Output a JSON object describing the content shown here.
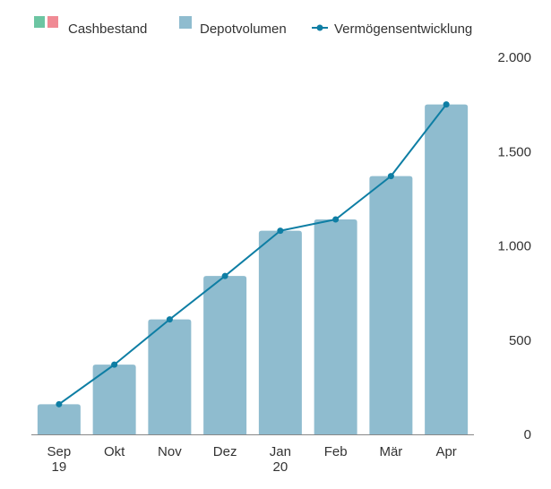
{
  "legend": {
    "items": [
      {
        "label": "Cashbestand",
        "icon": "dual-swatch-icon",
        "colors": [
          "#6cc5a2",
          "#f08a94"
        ]
      },
      {
        "label": "Depotvolumen",
        "icon": "square-swatch-icon",
        "colors": [
          "#8fbccf"
        ]
      },
      {
        "label": "Vermögensentwicklung",
        "icon": "line-marker-icon",
        "colors": [
          "#0e7ea4"
        ]
      }
    ]
  },
  "chart_data": {
    "type": "bar",
    "title": "",
    "xlabel": "",
    "ylabel": "",
    "categories": [
      [
        "Sep",
        "19"
      ],
      [
        "Okt"
      ],
      [
        "Nov"
      ],
      [
        "Dez"
      ],
      [
        "Jan",
        "20"
      ],
      [
        "Feb"
      ],
      [
        "Mär"
      ],
      [
        "Apr"
      ]
    ],
    "ylim": [
      0,
      2000
    ],
    "y_ticks": [
      0,
      500,
      1000,
      1500,
      2000
    ],
    "y_tick_labels": [
      "0",
      "500",
      "1.000",
      "1.500",
      "2.000"
    ],
    "y_axis_position": "right",
    "grid": false,
    "legend_position": "top-left",
    "series": [
      {
        "name": "Cashbestand",
        "type": "bar",
        "values": [
          0,
          0,
          0,
          0,
          0,
          0,
          0,
          0
        ],
        "colors": [
          "#6cc5a2",
          "#f08a94"
        ]
      },
      {
        "name": "Depotvolumen",
        "type": "bar",
        "values": [
          160,
          370,
          610,
          840,
          1080,
          1140,
          1370,
          1750
        ],
        "color": "#8fbccf"
      },
      {
        "name": "Vermögensentwicklung",
        "type": "line",
        "values": [
          160,
          370,
          610,
          840,
          1080,
          1140,
          1370,
          1750
        ],
        "color": "#0e7ea4"
      }
    ]
  }
}
